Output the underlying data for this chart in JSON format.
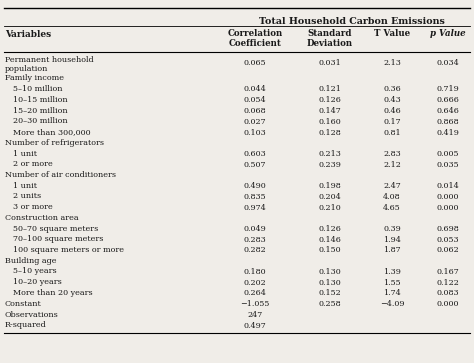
{
  "title": "Total Household Carbon Emissions",
  "col_header_left": "Variables",
  "col_headers": [
    "Correlation\nCoefficient",
    "Standard\nDeviation",
    "T Value",
    "p Value"
  ],
  "rows": [
    [
      "Permanent household\npopulation",
      "0.065",
      "0.031",
      "2.13",
      "0.034"
    ],
    [
      "Family income",
      "",
      "",
      "",
      ""
    ],
    [
      "5–10 million",
      "0.044",
      "0.121",
      "0.36",
      "0.719"
    ],
    [
      "10–15 million",
      "0.054",
      "0.126",
      "0.43",
      "0.666"
    ],
    [
      "15–20 million",
      "0.068",
      "0.147",
      "0.46",
      "0.646"
    ],
    [
      "20–30 million",
      "0.027",
      "0.160",
      "0.17",
      "0.868"
    ],
    [
      "More than 300,000",
      "0.103",
      "0.128",
      "0.81",
      "0.419"
    ],
    [
      "Number of refrigerators",
      "",
      "",
      "",
      ""
    ],
    [
      "1 unit",
      "0.603",
      "0.213",
      "2.83",
      "0.005"
    ],
    [
      "2 or more",
      "0.507",
      "0.239",
      "2.12",
      "0.035"
    ],
    [
      "Number of air conditioners",
      "",
      "",
      "",
      ""
    ],
    [
      "1 unit",
      "0.490",
      "0.198",
      "2.47",
      "0.014"
    ],
    [
      "2 units",
      "0.835",
      "0.204",
      "4.08",
      "0.000"
    ],
    [
      "3 or more",
      "0.974",
      "0.210",
      "4.65",
      "0.000"
    ],
    [
      "Construction area",
      "",
      "",
      "",
      ""
    ],
    [
      "50–70 square meters",
      "0.049",
      "0.126",
      "0.39",
      "0.698"
    ],
    [
      "70–100 square meters",
      "0.283",
      "0.146",
      "1.94",
      "0.053"
    ],
    [
      "100 square meters or more",
      "0.282",
      "0.150",
      "1.87",
      "0.062"
    ],
    [
      "Building age",
      "",
      "",
      "",
      ""
    ],
    [
      "5–10 years",
      "0.180",
      "0.130",
      "1.39",
      "0.167"
    ],
    [
      "10–20 years",
      "0.202",
      "0.130",
      "1.55",
      "0.122"
    ],
    [
      "More than 20 years",
      "0.264",
      "0.152",
      "1.74",
      "0.083"
    ],
    [
      "Constant",
      "−1.055",
      "0.258",
      "−4.09",
      "0.000"
    ],
    [
      "Observations",
      "247",
      "",
      "",
      ""
    ],
    [
      "R-squared",
      "0.497",
      "",
      "",
      ""
    ]
  ],
  "category_rows": [
    1,
    7,
    10,
    14,
    18
  ],
  "bg_color": "#f0ede8",
  "text_color": "#1a1a1a"
}
